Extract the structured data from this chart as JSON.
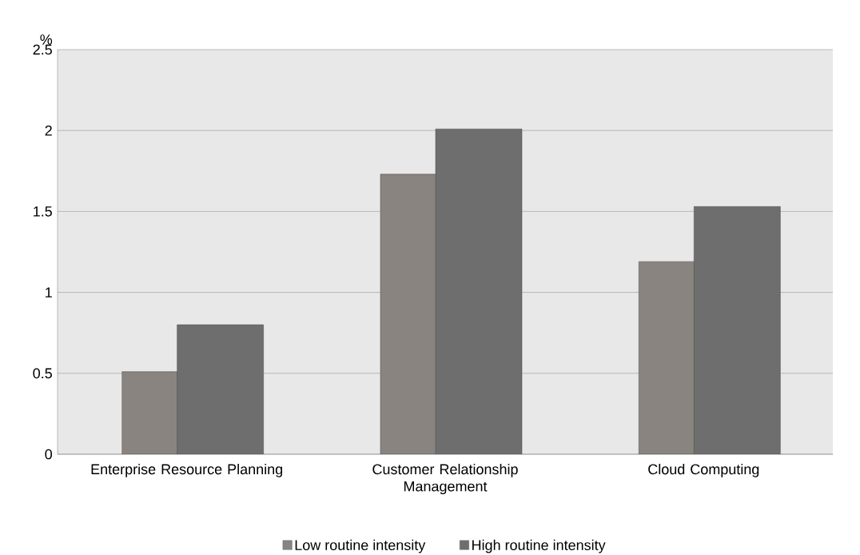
{
  "chart_data": {
    "type": "bar",
    "ylabel": "%",
    "categories": [
      "Enterprise Resource Planning",
      "Customer Relationship Management",
      "Cloud Computing"
    ],
    "series": [
      {
        "name": "Low routine intensity",
        "color": "#8a8480",
        "values": [
          0.51,
          1.73,
          1.19
        ]
      },
      {
        "name": "High routine intensity",
        "color": "#6e6e6e",
        "values": [
          0.8,
          2.01,
          1.53
        ]
      }
    ],
    "ylim": [
      0,
      2.5
    ],
    "yticks": [
      0,
      0.5,
      1,
      1.5,
      2,
      2.5
    ],
    "grid": "y",
    "legend": "bottom"
  }
}
